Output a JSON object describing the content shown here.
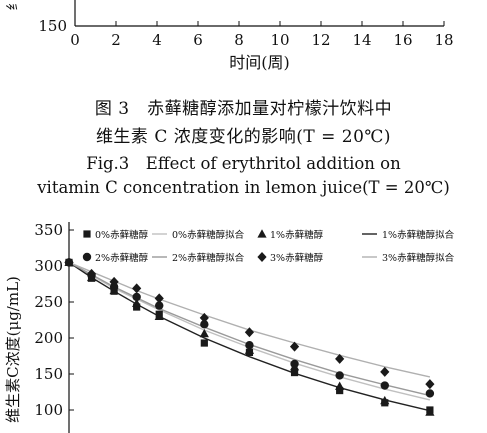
{
  "figure": {
    "caption_cn_line1": "图 3　赤藓糖醇添加量对柠檬汁饮料中",
    "caption_cn_line2": "维生素 C 浓度变化的影响(T = 20℃)",
    "caption_en_line1": "Fig.3　Effect of erythritol addition on",
    "caption_en_line2": "vitamin C concentration in lemon juice(T = 20℃)"
  },
  "chart_data": [
    {
      "type": "line",
      "xlabel": "时间(周)",
      "ylabel": "",
      "ylabel_partial": "纟",
      "xlim": [
        0,
        18
      ],
      "x_ticks": [
        "0",
        "2",
        "4",
        "6",
        "8",
        "10",
        "12",
        "14",
        "16",
        "18"
      ],
      "y_ticks_visible": [
        "150"
      ],
      "cropped": "top",
      "series": []
    },
    {
      "type": "scatter",
      "ylabel": "维生素C浓度(μg/mL)",
      "xlabel": "",
      "ylim": [
        100,
        350
      ],
      "y_ticks": [
        "350",
        "300",
        "250",
        "200",
        "150",
        "100"
      ],
      "xlim": [
        0,
        18
      ],
      "cropped": "bottom",
      "legend_placement": "top",
      "x": [
        0,
        1,
        2,
        3,
        4,
        6,
        8,
        10,
        12,
        14,
        16
      ],
      "series": [
        {
          "name": "0%赤藓糖醇",
          "marker": "square",
          "role": "points",
          "values": [
            305,
            283,
            265,
            243,
            233,
            193,
            180,
            152,
            127,
            110,
            100
          ]
        },
        {
          "name": "0%赤藓糖醇拟合",
          "role": "fit",
          "line_color": "#c0c0c0",
          "fit_of": "0%赤藓糖醇",
          "values": [
            305,
            287,
            269,
            254,
            239,
            211,
            187,
            165,
            146,
            129,
            114
          ]
        },
        {
          "name": "1%赤藓糖醇",
          "marker": "triangle",
          "role": "points",
          "values": [
            305,
            284,
            266,
            248,
            230,
            206,
            183,
            160,
            133,
            113,
            97
          ]
        },
        {
          "name": "1%赤藓糖醇拟合",
          "role": "fit",
          "line_color": "#222222",
          "fit_of": "1%赤藓糖醇",
          "values": [
            305,
            284,
            265,
            247,
            230,
            200,
            174,
            151,
            131,
            114,
            99
          ]
        },
        {
          "name": "2%赤藓糖醇",
          "marker": "circle",
          "role": "points",
          "values": [
            305,
            287,
            271,
            257,
            245,
            219,
            190,
            164,
            148,
            134,
            123
          ]
        },
        {
          "name": "2%赤藓糖醇拟合",
          "role": "fit",
          "line_color": "#9a9a9a",
          "fit_of": "2%赤藓糖醇",
          "values": [
            305,
            288,
            271,
            256,
            241,
            215,
            191,
            170,
            151,
            135,
            120
          ]
        },
        {
          "name": "3%赤藓糖醇",
          "marker": "diamond",
          "role": "points",
          "values": [
            305,
            289,
            278,
            269,
            255,
            228,
            208,
            188,
            171,
            153,
            136
          ]
        },
        {
          "name": "3%赤藓糖醇拟合",
          "role": "fit",
          "line_color": "#b0b0b0",
          "fit_of": "3%赤藓糖醇",
          "values": [
            305,
            292,
            279,
            266,
            254,
            232,
            211,
            193,
            176,
            160,
            146
          ]
        }
      ]
    }
  ],
  "colors": {
    "ink": "#111111",
    "marker": "#1a1a1a"
  }
}
